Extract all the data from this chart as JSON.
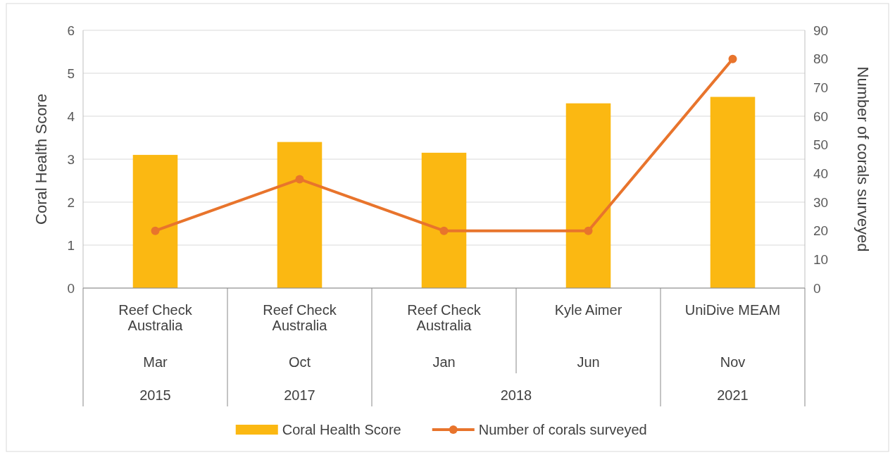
{
  "chart_data": {
    "type": "bar",
    "categories": [
      "Reef Check Australia",
      "Reef Check Australia",
      "Reef Check Australia",
      "Kyle Aimer",
      "UniDive MEAM"
    ],
    "annotations": [
      "Mar",
      "Oct",
      "Jan",
      "Jun",
      "Nov",
      "2015",
      "2017",
      "2018",
      "2021"
    ],
    "series": [
      {
        "name": "Coral Health Score",
        "color": "#fbb812",
        "values": [
          3.1,
          3.4,
          3.15,
          4.3,
          4.45
        ]
      },
      {
        "name": "Number of corals surveyed",
        "type": "line",
        "axis": "y2",
        "color": "#e8742c",
        "values": [
          20,
          38,
          20,
          20,
          80
        ]
      }
    ],
    "ylabel": "Coral Health Score",
    "y2label": "Number of corals surveyed",
    "ylim": [
      0,
      6
    ],
    "yticks": [
      0,
      1,
      2,
      3,
      4,
      5,
      6
    ],
    "y2lim": [
      0,
      90
    ],
    "y2ticks": [
      0,
      10,
      20,
      30,
      40,
      50,
      60,
      70,
      80,
      90
    ],
    "grid": "y",
    "legend": "bottom",
    "marker": "circle",
    "line_style": "solid"
  }
}
